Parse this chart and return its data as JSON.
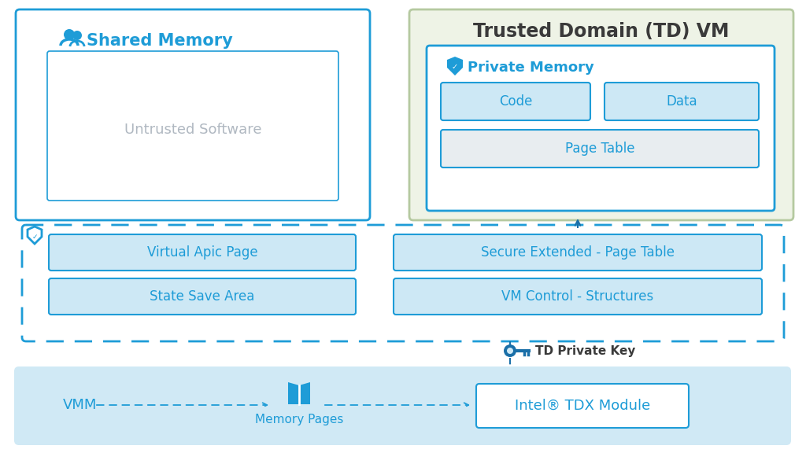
{
  "bg_color": "#ffffff",
  "blue_main": "#1e9cd7",
  "blue_light": "#cde8f5",
  "blue_border": "#1e9cd7",
  "blue_dark": "#1a6fa8",
  "green_bg": "#eef3e6",
  "green_border": "#b5c9a0",
  "gray_text": "#b0b8c1",
  "dark_text": "#3a3a3a",
  "bottom_bg": "#d0e9f5",
  "title_trusted": "Trusted Domain (TD) VM",
  "title_shared": "Shared Memory",
  "label_untrusted": "Untrusted Software",
  "label_private": "Private Memory",
  "label_code": "Code",
  "label_data": "Data",
  "label_page_table": "Page Table",
  "label_vap": "Virtual Apic Page",
  "label_ssa": "State Save Area",
  "label_sept": "Secure Extended - Page Table",
  "label_vmcs": "VM Control - Structures",
  "label_td_key": "TD Private Key",
  "label_vmm": "VMM",
  "label_mem_pages": "Memory Pages",
  "label_tdx_module": "Intel® TDX Module"
}
